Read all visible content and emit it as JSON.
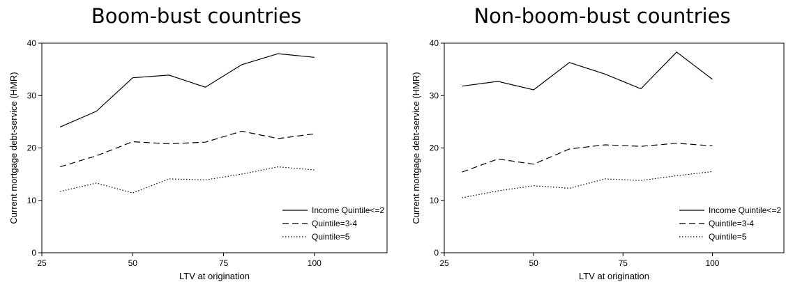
{
  "chart_data": [
    {
      "type": "line",
      "title": "Boom-bust countries",
      "xlabel": "LTV at origination",
      "ylabel": "Current mortgage debt-service (HMR)",
      "xlim": [
        25,
        120
      ],
      "ylim": [
        0,
        40
      ],
      "xticks": [
        25,
        50,
        75,
        100
      ],
      "yticks": [
        0,
        10,
        20,
        30,
        40
      ],
      "x": [
        30,
        40,
        50,
        60,
        70,
        80,
        90,
        100
      ],
      "series": [
        {
          "name": "Income Quintile<=2",
          "style": "solid",
          "values": [
            24.0,
            27.0,
            33.4,
            33.9,
            31.6,
            35.9,
            38.0,
            37.3
          ]
        },
        {
          "name": "Quintile=3-4",
          "style": "dashed",
          "values": [
            16.4,
            18.5,
            21.2,
            20.8,
            21.1,
            23.2,
            21.8,
            22.7
          ]
        },
        {
          "name": "Quintile=5",
          "style": "dotted",
          "values": [
            11.7,
            13.3,
            11.4,
            14.1,
            13.9,
            15.0,
            16.4,
            15.8
          ]
        }
      ],
      "legend_position": "bottom-right",
      "grid": false
    },
    {
      "type": "line",
      "title": "Non-boom-bust countries",
      "xlabel": "LTV at origination",
      "ylabel": "Current mortgage debt-service (HMR)",
      "xlim": [
        25,
        120
      ],
      "ylim": [
        0,
        40
      ],
      "xticks": [
        25,
        50,
        75,
        100
      ],
      "yticks": [
        0,
        10,
        20,
        30,
        40
      ],
      "x": [
        30,
        40,
        50,
        60,
        70,
        80,
        90,
        100
      ],
      "series": [
        {
          "name": "Income Quintile<=2",
          "style": "solid",
          "values": [
            31.8,
            32.7,
            31.1,
            36.3,
            34.1,
            31.3,
            38.3,
            33.1
          ]
        },
        {
          "name": "Quintile=3-4",
          "style": "dashed",
          "values": [
            15.4,
            17.9,
            16.9,
            19.8,
            20.6,
            20.3,
            20.9,
            20.4
          ]
        },
        {
          "name": "Quintile=5",
          "style": "dotted",
          "values": [
            10.5,
            11.8,
            12.8,
            12.3,
            14.1,
            13.8,
            14.7,
            15.5
          ]
        }
      ],
      "legend_position": "bottom-right",
      "grid": false
    }
  ]
}
